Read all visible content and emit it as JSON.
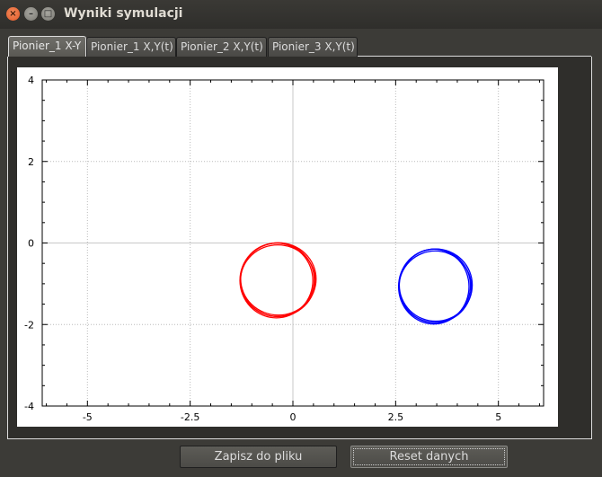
{
  "window": {
    "title": "Wyniki symulacji"
  },
  "tabs": [
    {
      "label": "Pionier_1 X-Y",
      "active": true
    },
    {
      "label": "Pionier_1 X,Y(t)",
      "active": false
    },
    {
      "label": "Pionier_2 X,Y(t)",
      "active": false
    },
    {
      "label": "Pionier_3 X,Y(t)",
      "active": false
    }
  ],
  "buttons": {
    "save_label": "Zapisz do pliku",
    "reset_label": "Reset danych"
  },
  "chart_data": {
    "type": "line",
    "title": "",
    "xlabel": "",
    "ylabel": "",
    "xlim": [
      -6.1,
      6.1
    ],
    "ylim": [
      -4,
      4
    ],
    "x_ticks": [
      -5,
      -2.5,
      0,
      2.5,
      5
    ],
    "x_tick_labels": [
      "-5",
      "-2.5",
      "0",
      "2.5",
      "5"
    ],
    "y_ticks": [
      -4,
      -2,
      0,
      2,
      4
    ],
    "y_tick_labels": [
      "-4",
      "-2",
      "0",
      "2",
      "4"
    ],
    "grid": true,
    "series": [
      {
        "type": "circle",
        "color": "#ff0000",
        "center": [
          -0.38,
          -0.9
        ],
        "radius_x": 0.9,
        "radius_y": 0.9
      },
      {
        "type": "circle",
        "color": "#0000ff",
        "center": [
          3.45,
          -1.05
        ],
        "radius_x": 0.87,
        "radius_y": 0.9
      }
    ]
  }
}
